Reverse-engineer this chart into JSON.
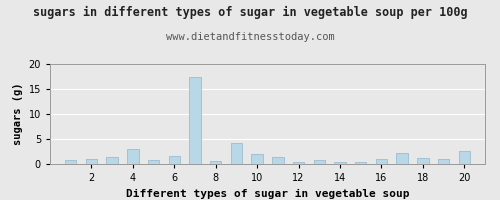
{
  "title": "sugars in different types of sugar in vegetable soup per 100g",
  "subtitle": "www.dietandfitnesstoday.com",
  "xlabel": "Different types of sugar in vegetable soup",
  "ylabel": "sugars (g)",
  "bar_color": "#b8d8e8",
  "bar_edgecolor": "#90b8cc",
  "background_color": "#e8e8e8",
  "plot_bg_color": "#e8e8e8",
  "xlim": [
    0.0,
    21.0
  ],
  "ylim": [
    0,
    20
  ],
  "yticks": [
    0,
    5,
    10,
    15,
    20
  ],
  "xticks": [
    2,
    4,
    6,
    8,
    10,
    12,
    14,
    16,
    18,
    20
  ],
  "x_values": [
    1,
    2,
    3,
    4,
    5,
    6,
    7,
    8,
    9,
    10,
    11,
    12,
    13,
    14,
    15,
    16,
    17,
    18,
    19,
    20
  ],
  "y_values": [
    0.9,
    1.1,
    1.5,
    3.0,
    0.85,
    1.6,
    17.5,
    0.7,
    4.3,
    2.0,
    1.4,
    0.45,
    0.85,
    0.35,
    0.5,
    1.0,
    2.2,
    1.2,
    1.1,
    2.7
  ],
  "title_fontsize": 8.5,
  "subtitle_fontsize": 7.5,
  "xlabel_fontsize": 8,
  "ylabel_fontsize": 7.5,
  "tick_fontsize": 7,
  "bar_width": 0.55,
  "grid_color": "#ffffff",
  "grid_linewidth": 0.8,
  "spine_color": "#999999"
}
